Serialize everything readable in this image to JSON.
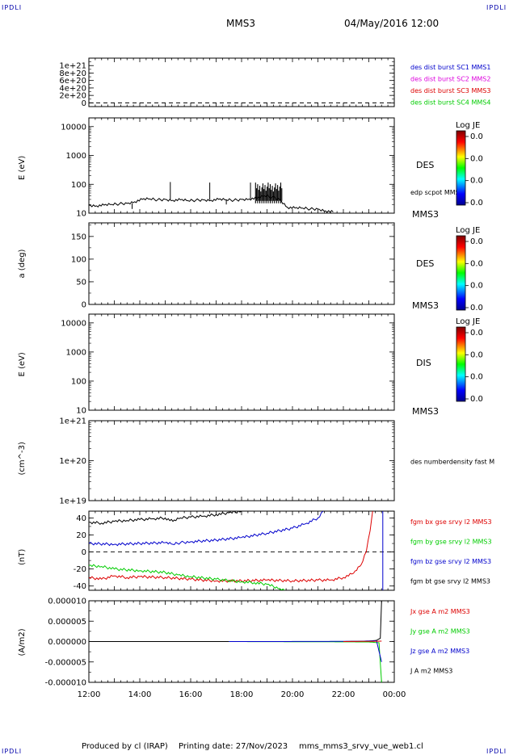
{
  "header": {
    "corner_tl": "IPDLI",
    "corner_tr": "IPDLI",
    "corner_bl": "IPDLI",
    "corner_br": "IPDLI",
    "spacecraft": "MMS3",
    "datetime": "04/May/2016 12:00"
  },
  "footer": {
    "produced": "Produced by cl (IRAP)",
    "printing_date": "Printing date: 27/Nov/2023",
    "filename": "mms_mms3_srvy_vue_web1.cl"
  },
  "colors": {
    "red": "#dd0000",
    "green": "#00cc00",
    "blue": "#0000cc",
    "magenta": "#dd00dd",
    "black": "#000000"
  },
  "time_axis": {
    "ticks": [
      "12:00",
      "14:00",
      "16:00",
      "18:00",
      "20:00",
      "22:00",
      "00:00"
    ],
    "extra_tick_value": 23.5,
    "extra_tick_label": "00:00",
    "range_hours": [
      12,
      24
    ]
  },
  "chart_data": [
    {
      "id": "burst",
      "type": "line",
      "ylabel": "",
      "ylim": [
        -1e+20,
        1.2e+21
      ],
      "yticks": [
        0,
        2e+20,
        4e+20,
        6e+20,
        8e+20,
        1e+21
      ],
      "ytick_labels": [
        "0",
        "2e+20",
        "4e+20",
        "6e+20",
        "8e+20",
        "1e+21"
      ],
      "dashed_zero": true,
      "legend": [
        {
          "text": "des dist burst SC1 MMS1",
          "color": "blue"
        },
        {
          "text": "des dist burst SC2 MMS2",
          "color": "magenta"
        },
        {
          "text": "des dist burst SC3 MMS3",
          "color": "red"
        },
        {
          "text": "des dist burst SC4 MMS4",
          "color": "green"
        }
      ]
    },
    {
      "id": "des_energy",
      "type": "line",
      "ylabel": "E (eV)",
      "log": true,
      "ylim": [
        10,
        20000
      ],
      "yticks": [
        10,
        100,
        1000,
        10000
      ],
      "ytick_labels": [
        "10",
        "100",
        "1000",
        "10000"
      ],
      "right_label": "DES",
      "sc_label": "MMS3",
      "series_label": "edp scpot MMS3",
      "colorbar": {
        "title": "Log JE",
        "ticks": [
          "0.0",
          "0.0",
          "0.0",
          "0.0"
        ]
      },
      "series": [
        {
          "name": "edp scpot MMS3",
          "color": "black",
          "x": [
            12.0,
            12.3,
            12.6,
            12.9,
            13.2,
            13.5,
            13.8,
            14.1,
            14.4,
            14.7,
            15.0,
            15.3,
            15.6,
            15.9,
            16.2,
            16.5,
            16.8,
            17.1,
            17.4,
            17.7,
            18.0,
            18.3,
            18.6,
            18.9,
            19.2,
            19.5,
            19.8,
            20.1,
            20.4,
            20.7,
            21.0,
            21.3,
            21.6
          ],
          "y": [
            19,
            18,
            19,
            20,
            21,
            22,
            25,
            30,
            31,
            29,
            30,
            28,
            29,
            27,
            28,
            29,
            28,
            30,
            29,
            28,
            30,
            31,
            33,
            40,
            36,
            30,
            16,
            15,
            15,
            14,
            14,
            12,
            11
          ]
        }
      ],
      "spikes": [
        {
          "x": 13.7,
          "y": 14
        },
        {
          "x": 15.2,
          "y": 120
        },
        {
          "x": 16.75,
          "y": 115
        },
        {
          "x": 17.4,
          "y": 20
        },
        {
          "x": 18.35,
          "y": 115
        }
      ],
      "burst_band": {
        "x_start": 18.55,
        "x_end": 19.6,
        "y_low": 22,
        "y_high": 115
      }
    },
    {
      "id": "des_pitch",
      "type": "heatmap",
      "ylabel": "a (deg)",
      "ylim": [
        0,
        180
      ],
      "yticks": [
        0,
        50,
        100,
        150
      ],
      "ytick_labels": [
        "0",
        "50",
        "100",
        "150"
      ],
      "right_label": "DES",
      "sc_label": "MMS3",
      "colorbar": {
        "title": "Log JE",
        "ticks": [
          "0.0",
          "0.0",
          "0.0",
          "0.0"
        ]
      }
    },
    {
      "id": "dis_energy",
      "type": "heatmap",
      "ylabel": "E (eV)",
      "log": true,
      "ylim": [
        10,
        20000
      ],
      "yticks": [
        10,
        100,
        1000,
        10000
      ],
      "ytick_labels": [
        "10",
        "100",
        "1000",
        "10000"
      ],
      "right_label": "DIS",
      "sc_label": "MMS3",
      "colorbar": {
        "title": "Log JE",
        "ticks": [
          "0.0",
          "0.0",
          "0.0",
          "0.0"
        ]
      }
    },
    {
      "id": "density",
      "type": "line",
      "ylabel": "(cm^-3)",
      "log": true,
      "ylim": [
        1e+19,
        1e+21
      ],
      "yticks": [
        1e+19,
        1e+20,
        1e+21
      ],
      "ytick_labels": [
        "1e+19",
        "1e+20",
        "1e+21"
      ],
      "series_label": "des numberdensity fast M"
    },
    {
      "id": "fgm",
      "type": "line",
      "ylabel": "(nT)",
      "ylim": [
        -45,
        48
      ],
      "yticks": [
        -40,
        -20,
        0,
        20,
        40
      ],
      "ytick_labels": [
        "-40",
        "-20",
        "0",
        "20",
        "40"
      ],
      "dashed_zero": true,
      "legend": [
        {
          "text": "fgm bx gse srvy l2 MMS3",
          "color": "red"
        },
        {
          "text": "fgm by gse srvy l2 MMS3",
          "color": "green"
        },
        {
          "text": "fgm bz gse srvy l2 MMS3",
          "color": "blue"
        },
        {
          "text": "fgm bt gse srvy l2 MMS3",
          "color": "black"
        }
      ],
      "series": [
        {
          "name": "fgm bt gse srvy l2 MMS3",
          "color": "black",
          "x": [
            12.0,
            12.5,
            13.0,
            13.5,
            14.0,
            14.5,
            15.0,
            15.3,
            15.6,
            16.0,
            16.5,
            17.0,
            17.5,
            18.0
          ],
          "y": [
            35,
            34,
            36,
            37,
            38,
            39,
            40,
            36,
            40,
            41,
            42,
            44,
            46,
            48
          ]
        },
        {
          "name": "fgm bz gse srvy l2 MMS3",
          "color": "blue",
          "x": [
            12.0,
            13.0,
            14.0,
            15.0,
            15.3,
            15.6,
            16.0,
            17.0,
            18.0,
            19.0,
            20.0,
            20.5,
            21.0,
            21.2
          ],
          "y": [
            10,
            9,
            10,
            11,
            9,
            11,
            12,
            14,
            17,
            22,
            28,
            33,
            40,
            48
          ]
        },
        {
          "name": "fgm bx gse srvy l2 MMS3",
          "color": "red",
          "x": [
            12.0,
            12.5,
            13.0,
            13.5,
            14.0,
            15.0,
            16.0,
            17.0,
            18.0,
            19.0,
            20.0,
            21.0,
            21.5,
            22.0,
            22.4,
            22.7,
            22.9,
            23.05,
            23.15
          ],
          "y": [
            -30,
            -32,
            -28,
            -30,
            -29,
            -30,
            -32,
            -34,
            -34,
            -33,
            -34,
            -33,
            -33,
            -30,
            -25,
            -15,
            0,
            25,
            48
          ]
        },
        {
          "name": "fgm by gse srvy l2 MMS3",
          "color": "green",
          "x": [
            12.0,
            12.5,
            13.0,
            14.0,
            15.0,
            15.5,
            16.0,
            17.0,
            18.0,
            18.5,
            19.0,
            19.5,
            19.7
          ],
          "y": [
            -16,
            -17,
            -20,
            -22,
            -24,
            -27,
            -29,
            -32,
            -35,
            -36,
            -38,
            -43,
            -46
          ]
        },
        {
          "name": "fgm bz gse srvy l2 MMS3",
          "color": "blue",
          "x": [
            23.55,
            23.55
          ],
          "y": [
            -45,
            48
          ]
        }
      ]
    },
    {
      "id": "current",
      "type": "line",
      "ylabel": "(A/m2)",
      "ylim": [
        -1e-05,
        1e-05
      ],
      "yticks": [
        -1e-05,
        -5e-06,
        0,
        5e-06,
        1e-05
      ],
      "ytick_labels": [
        "-0.000010",
        "-0.000005",
        "0.000000",
        "0.000005",
        "0.000010"
      ],
      "legend": [
        {
          "text": "Jx gse A m2 MMS3",
          "color": "red"
        },
        {
          "text": "Jy gse A m2 MMS3",
          "color": "green"
        },
        {
          "text": "Jz gse A m2 MMS3",
          "color": "blue"
        },
        {
          "text": "J A m2 MMS3",
          "color": "black"
        }
      ],
      "series": [
        {
          "name": "J A m2 MMS3",
          "color": "black",
          "x": [
            12.0,
            14.0,
            16.0,
            18.0,
            20.0,
            22.0,
            23.0,
            23.3,
            23.45,
            23.5
          ],
          "y": [
            0,
            0,
            0,
            0,
            0,
            0,
            1e-07,
            3e-07,
            8e-07,
            1e-05
          ]
        },
        {
          "name": "Jy gse A m2 MMS3",
          "color": "green",
          "x": [
            17.5,
            19.0,
            21.0,
            22.0,
            23.0,
            23.4,
            23.5
          ],
          "y": [
            0,
            -2e-08,
            -5e-08,
            -8e-08,
            -1e-07,
            -3e-07,
            -1e-05
          ]
        },
        {
          "name": "Jz gse A m2 MMS3",
          "color": "blue",
          "x": [
            17.5,
            19.0,
            21.0,
            22.5,
            23.3,
            23.5
          ],
          "y": [
            0,
            0,
            2e-08,
            5e-08,
            2e-07,
            -5e-06
          ]
        },
        {
          "name": "Jx gse A m2 MMS3",
          "color": "red",
          "x": [
            22.0,
            23.0,
            23.5
          ],
          "y": [
            0,
            5e-08,
            1e-07
          ]
        }
      ]
    }
  ]
}
